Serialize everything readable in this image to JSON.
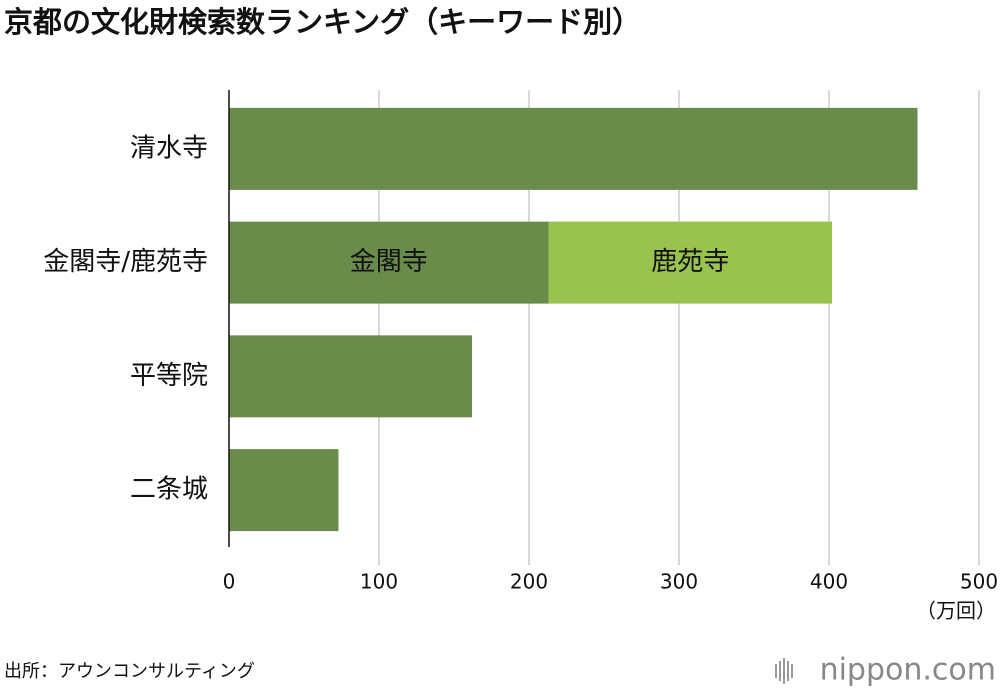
{
  "chart_data": {
    "type": "bar",
    "orientation": "horizontal",
    "stacked": true,
    "title": "京都の文化財検索数ランキング（キーワード別）",
    "categories": [
      "清水寺",
      "金閣寺/鹿苑寺",
      "平等院",
      "二条城"
    ],
    "series": [
      {
        "name": "金閣寺",
        "color": "#6a8c4a",
        "values": [
          459,
          213,
          162,
          73
        ]
      },
      {
        "name": "鹿苑寺",
        "color": "#9ac24f",
        "values": [
          null,
          189,
          null,
          null
        ]
      }
    ],
    "xlim": [
      0,
      500
    ],
    "xticks": [
      0,
      100,
      200,
      300,
      400,
      500
    ],
    "grid": true,
    "x_unit": "（万回）",
    "source": "出所：アウンコンサルティング",
    "brand": "nippon.com"
  }
}
